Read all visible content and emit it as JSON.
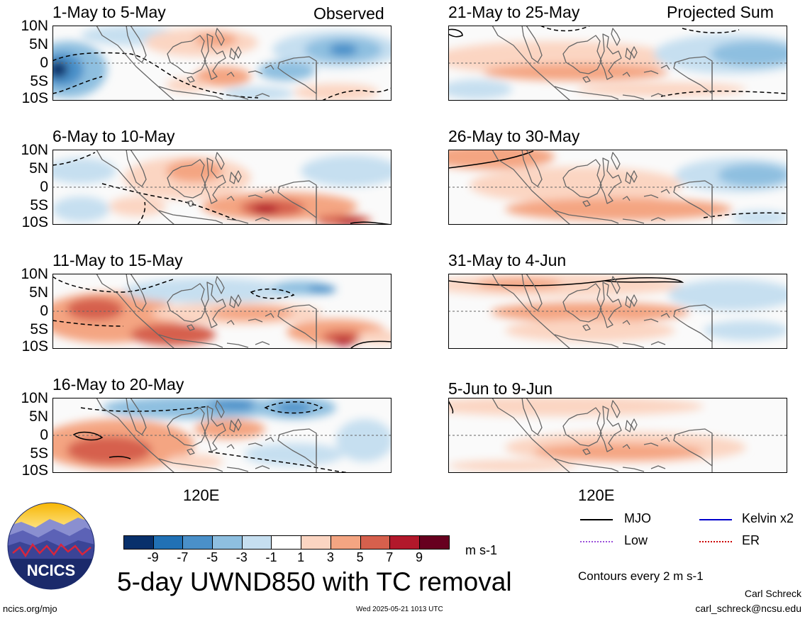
{
  "headers": {
    "observed": "Observed",
    "projected": "Projected Sum"
  },
  "lat_labels": [
    "10N",
    "5N",
    "0",
    "5S",
    "10S"
  ],
  "panels": [
    {
      "title": "1-May to 5-May"
    },
    {
      "title": "6-May to 10-May"
    },
    {
      "title": "11-May to 15-May"
    },
    {
      "title": "16-May to 20-May"
    },
    {
      "title": "21-May to 25-May"
    },
    {
      "title": "26-May to 30-May"
    },
    {
      "title": "31-May to 4-Jun"
    },
    {
      "title": "5-Jun to 9-Jun"
    }
  ],
  "x_tick": "120E",
  "colorbar": {
    "colors": [
      "#08306b",
      "#2171b5",
      "#4a90c9",
      "#8ebfe0",
      "#c6dff0",
      "#ffffff",
      "#fbd5c2",
      "#f4a582",
      "#d6604d",
      "#b2182b",
      "#67001f"
    ],
    "labels": [
      "-9",
      "-7",
      "-5",
      "-3",
      "-1",
      "1",
      "3",
      "5",
      "7",
      "9"
    ],
    "units": "m s-1"
  },
  "legend": [
    {
      "label": "MJO",
      "color": "#000000"
    },
    {
      "label": "Kelvin x2",
      "color": "#0000cc"
    },
    {
      "label": "Low",
      "color": "#9b4fd9"
    },
    {
      "label": "ER",
      "color": "#cc0000"
    }
  ],
  "contours_note": "Contours every 2 m s-1",
  "main_title": "5-day UWND850 with TC removal",
  "logo_text": "NCICS",
  "footer": {
    "url": "ncics.org/mjo",
    "timestamp": "Wed 2025-05-21 1013 UTC",
    "author": "Carl Schreck",
    "email": "carl_schreck@ncsu.edu"
  }
}
